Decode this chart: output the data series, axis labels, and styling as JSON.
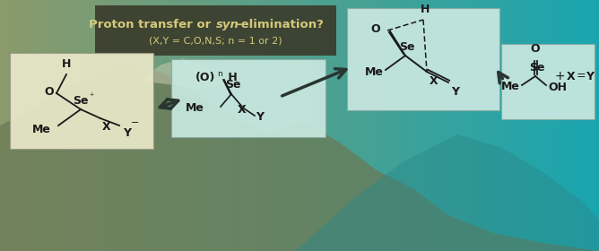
{
  "title_line1": "Proton transfer or ",
  "title_syn": "syn",
  "title_line1_end": "-elimination?",
  "title_line2": "(X,Y = C,O,N,S; n = 1 or 2)",
  "title_box_color": "#3a3a2a",
  "title_text_color": "#d4c97a",
  "fig_width": 6.68,
  "fig_height": 2.8,
  "box1_color": "#e8e8c8",
  "box2_color": "#c8e8e0",
  "box3_color": "#c8e8e0",
  "box4_color": "#c8e8e0",
  "arrow_color": "#2a3530",
  "chem_color": "#1a1a1a"
}
